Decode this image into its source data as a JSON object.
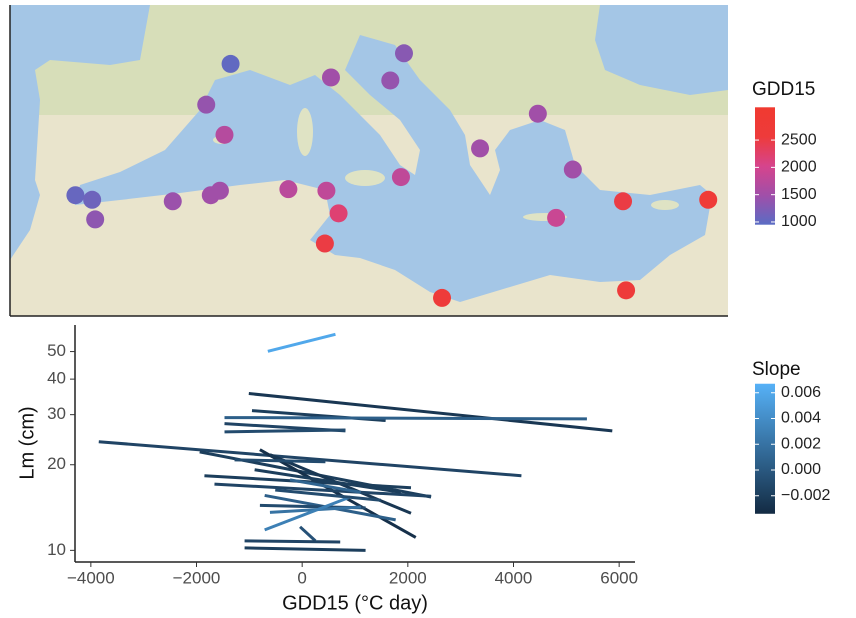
{
  "chart_data": [
    {
      "type": "map",
      "legend_title": "GDD15",
      "xlim": [
        -9.9,
        37.3
      ],
      "ylim": [
        28.2,
        48.8
      ],
      "clim": [
        950,
        3100
      ],
      "colors": [
        "#5a6cc4",
        "#a04fa9",
        "#d6448c",
        "#ee3b3b",
        "#f03a30"
      ],
      "ticks": [
        1000,
        1500,
        2000,
        2500
      ],
      "points": [
        {
          "lon": 4.6,
          "lat": 44.9,
          "gdd": 1000
        },
        {
          "lon": 3.0,
          "lat": 42.2,
          "gdd": 1400
        },
        {
          "lon": 4.2,
          "lat": 40.2,
          "gdd": 1700
        },
        {
          "lon": 11.2,
          "lat": 44.0,
          "gdd": 1500
        },
        {
          "lon": 15.1,
          "lat": 43.8,
          "gdd": 1400
        },
        {
          "lon": 16.0,
          "lat": 45.6,
          "gdd": 1300
        },
        {
          "lon": 24.8,
          "lat": 41.6,
          "gdd": 1500
        },
        {
          "lon": 21.0,
          "lat": 39.3,
          "gdd": 1500
        },
        {
          "lon": 27.1,
          "lat": 37.9,
          "gdd": 1500
        },
        {
          "lon": 15.8,
          "lat": 37.4,
          "gdd": 1800
        },
        {
          "lon": -5.6,
          "lat": 36.2,
          "gdd": 1050
        },
        {
          "lon": -4.5,
          "lat": 35.9,
          "gdd": 1100
        },
        {
          "lon": -4.3,
          "lat": 34.6,
          "gdd": 1350
        },
        {
          "lon": 0.8,
          "lat": 35.8,
          "gdd": 1450
        },
        {
          "lon": 3.3,
          "lat": 36.2,
          "gdd": 1500
        },
        {
          "lon": 3.9,
          "lat": 36.5,
          "gdd": 1500
        },
        {
          "lon": 8.4,
          "lat": 36.6,
          "gdd": 1750
        },
        {
          "lon": 10.9,
          "lat": 36.5,
          "gdd": 1800
        },
        {
          "lon": 11.7,
          "lat": 35.0,
          "gdd": 2200
        },
        {
          "lon": 10.8,
          "lat": 33.0,
          "gdd": 2500
        },
        {
          "lon": 26.0,
          "lat": 34.7,
          "gdd": 1900
        },
        {
          "lon": 30.4,
          "lat": 35.8,
          "gdd": 2500
        },
        {
          "lon": 36.0,
          "lat": 35.9,
          "gdd": 2700
        },
        {
          "lon": 18.5,
          "lat": 29.4,
          "gdd": 2600
        },
        {
          "lon": 30.6,
          "lat": 29.9,
          "gdd": 2600
        }
      ]
    },
    {
      "type": "segments",
      "xlabel": "GDD15 (°C day)",
      "ylabel": "Lm (cm)",
      "legend_title": "Slope",
      "log_y": true,
      "xlim": [
        -4300,
        6300
      ],
      "ylim": [
        9.1,
        62
      ],
      "xticks": [
        {
          "value": -4000,
          "label": "−4000"
        },
        {
          "value": -2000,
          "label": "−2000"
        },
        0,
        2000,
        4000,
        6000
      ],
      "yticks": [
        10,
        20,
        30,
        40,
        50
      ],
      "clim": [
        -0.0034,
        0.0067
      ],
      "colors": [
        "#132b43",
        "#56b1f7"
      ],
      "cticks": [
        0.006,
        0.004,
        0.002,
        {
          "value": 0,
          "label": "0.000"
        },
        {
          "value": -0.002,
          "label": "−0.002"
        }
      ],
      "segments": [
        {
          "x": [
            -650,
            630
          ],
          "y": [
            50.1,
            57.5
          ],
          "slope": 0.006
        },
        {
          "x": [
            -1010,
            5870
          ],
          "y": [
            35.6,
            26.3
          ],
          "slope": -0.0025
        },
        {
          "x": [
            -950,
            1580
          ],
          "y": [
            31.0,
            28.6
          ],
          "slope": -0.002
        },
        {
          "x": [
            -1470,
            5390
          ],
          "y": [
            29.3,
            29.0
          ],
          "slope": 0.0005
        },
        {
          "x": [
            -1470,
            820
          ],
          "y": [
            27.9,
            26.3
          ],
          "slope": -0.0015
        },
        {
          "x": [
            -1470,
            820
          ],
          "y": [
            26.1,
            26.5
          ],
          "slope": -0.001
        },
        {
          "x": [
            -3850,
            4150
          ],
          "y": [
            24.1,
            18.3
          ],
          "slope": -0.0015
        },
        {
          "x": [
            -1940,
            2440
          ],
          "y": [
            22.2,
            15.4
          ],
          "slope": -0.002
        },
        {
          "x": [
            -800,
            2150
          ],
          "y": [
            22.6,
            11.1
          ],
          "slope": -0.003
        },
        {
          "x": [
            -610,
            2060
          ],
          "y": [
            21.7,
            13.5
          ],
          "slope": -0.0025
        },
        {
          "x": [
            -1280,
            440
          ],
          "y": [
            20.8,
            20.5
          ],
          "slope": -0.001
        },
        {
          "x": [
            -1850,
            2060
          ],
          "y": [
            18.3,
            16.6
          ],
          "slope": -0.002
        },
        {
          "x": [
            -1660,
            2440
          ],
          "y": [
            17.1,
            15.5
          ],
          "slope": -0.0015
        },
        {
          "x": [
            -900,
            1870
          ],
          "y": [
            19.2,
            16.0
          ],
          "slope": -0.002
        },
        {
          "x": [
            -710,
            1770
          ],
          "y": [
            15.6,
            12.8
          ],
          "slope": 0.0005
        },
        {
          "x": [
            -800,
            1200
          ],
          "y": [
            14.4,
            14.1
          ],
          "slope": -0.001
        },
        {
          "x": [
            -610,
            1110
          ],
          "y": [
            13.6,
            14.2
          ],
          "slope": 0.002
        },
        {
          "x": [
            -710,
            910
          ],
          "y": [
            11.8,
            15.4
          ],
          "slope": 0.003
        },
        {
          "x": [
            -40,
            250
          ],
          "y": [
            12.1,
            10.8
          ],
          "slope": -0.0005
        },
        {
          "x": [
            -1090,
            720
          ],
          "y": [
            10.8,
            10.7
          ],
          "slope": -0.0015
        },
        {
          "x": [
            -1090,
            1200
          ],
          "y": [
            10.2,
            10.0
          ],
          "slope": -0.002
        },
        {
          "x": [
            -510,
            1490
          ],
          "y": [
            16.3,
            15.0
          ],
          "slope": -0.001
        },
        {
          "x": [
            -230,
            1110
          ],
          "y": [
            17.7,
            16.0
          ],
          "slope": 0.001
        }
      ]
    }
  ]
}
